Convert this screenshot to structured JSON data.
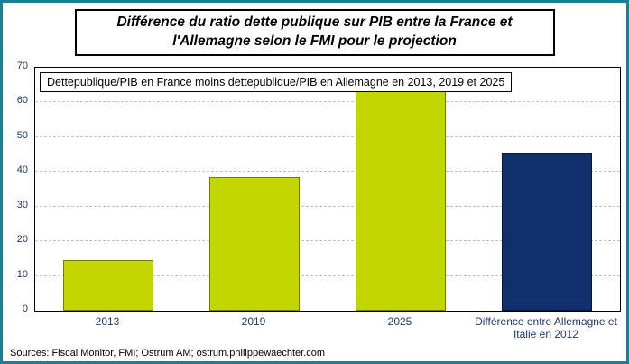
{
  "frame": {
    "border_color": "#1d7f91"
  },
  "title": {
    "lines": [
      "Différence du ratio dette publique sur PIB  entre la France et",
      "l'Allemagne selon le FMI pour le projection"
    ]
  },
  "chart_data": {
    "type": "bar",
    "note": "Dettepublique/PIB en France moins dettepublique/PIB en Allemagne en 2013, 2019 et 2025",
    "categories": [
      "2013",
      "2019",
      "2025",
      "Différence entre Allemagne et Italie en 2012"
    ],
    "values": [
      14.5,
      38.5,
      63.5,
      45.5
    ],
    "bar_colors": [
      "#c3d600",
      "#c3d600",
      "#c3d600",
      "#112f6d"
    ],
    "bar_border_colors": [
      "#6e7f00",
      "#6e7f00",
      "#6e7f00",
      "#08173a"
    ],
    "ylim": [
      0,
      70
    ],
    "ytick_step": 10,
    "grid": true,
    "legend": "none",
    "axis_label_color": "#1f3864"
  },
  "footer": {
    "sources": "Sources: Fiscal Monitor, FMI;  Ostrum AM; ostrum.philippewaechter.com"
  }
}
